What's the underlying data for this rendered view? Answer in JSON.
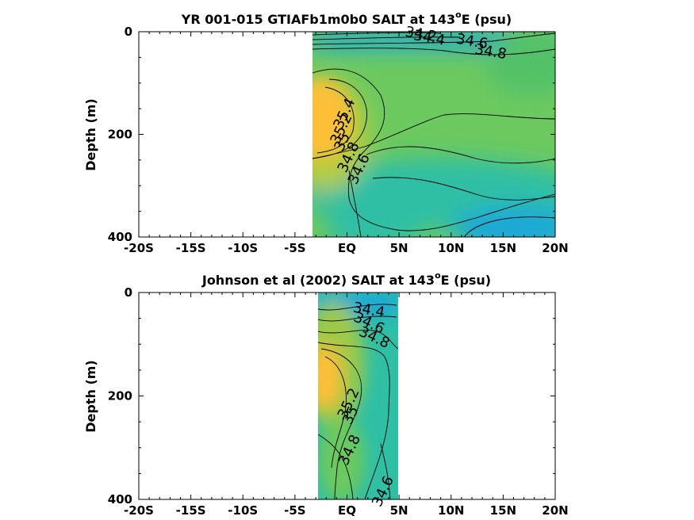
{
  "colors": {
    "low": "#1aa9d6",
    "mid_low": "#2ebfa5",
    "mid": "#6cc95f",
    "mid_high": "#b7cc3c",
    "high": "#fdbf39",
    "contour": "#000000",
    "axis": "#000000"
  },
  "chart_data": [
    {
      "type": "heatmap",
      "title_pre": "YR 001-015 GTIAFb1m0b0 SALT at 143",
      "title_sup": "o",
      "title_post": "E (psu)",
      "xlabel": "",
      "ylabel": "Depth (m)",
      "xlim": [
        -20,
        20
      ],
      "ylim": [
        0,
        400
      ],
      "y_reversed": true,
      "x_ticks": [
        -20,
        -15,
        -10,
        -5,
        0,
        5,
        10,
        15,
        20
      ],
      "x_tick_labels": [
        "-20S",
        "-15S",
        "-10S",
        "-5S",
        "EQ",
        "5N",
        "10N",
        "15N",
        "20N"
      ],
      "y_ticks": [
        0,
        200,
        400
      ],
      "y_tick_labels": [
        "0",
        "200",
        "400"
      ],
      "data_x_range": [
        -3.5,
        20
      ],
      "data_y_range": [
        0,
        400
      ],
      "contour_labels": [
        {
          "text": "34.2",
          "lat": 7.1,
          "depth": 6
        },
        {
          "text": "34.4",
          "lat": 7.9,
          "depth": 13
        },
        {
          "text": "34.6",
          "lat": 12.0,
          "depth": 20
        },
        {
          "text": "34.8",
          "lat": 13.8,
          "depth": 40
        },
        {
          "text": "35.4",
          "lat": -0.2,
          "depth": 160
        },
        {
          "text": "35.2",
          "lat": -0.5,
          "depth": 190
        },
        {
          "text": "35",
          "lat": -0.4,
          "depth": 215
        },
        {
          "text": "34.8",
          "lat": 0.2,
          "depth": 245
        },
        {
          "text": "34.6",
          "lat": 1.2,
          "depth": 268
        }
      ]
    },
    {
      "type": "heatmap",
      "title_pre": "Johnson et al (2002) SALT at 143",
      "title_sup": "o",
      "title_post": "E (psu)",
      "xlabel": "",
      "ylabel": "Depth (m)",
      "xlim": [
        -20,
        20
      ],
      "ylim": [
        0,
        400
      ],
      "y_reversed": true,
      "x_ticks": [
        -20,
        -15,
        -10,
        -5,
        0,
        5,
        10,
        15,
        20
      ],
      "x_tick_labels": [
        "-20S",
        "-15S",
        "-10S",
        "-5S",
        "EQ",
        "5N",
        "10N",
        "15N",
        "20N"
      ],
      "y_ticks": [
        0,
        200,
        400
      ],
      "y_tick_labels": [
        "0",
        "200",
        "400"
      ],
      "data_x_range": [
        -2.8,
        5
      ],
      "data_y_range": [
        0,
        400
      ],
      "contour_labels": [
        {
          "text": "34.4",
          "lat": 2.1,
          "depth": 35
        },
        {
          "text": "34.6",
          "lat": 2.1,
          "depth": 60
        },
        {
          "text": "34.8",
          "lat": 2.6,
          "depth": 88
        },
        {
          "text": "35.2",
          "lat": 0.2,
          "depth": 215
        },
        {
          "text": "35",
          "lat": 0.4,
          "depth": 238
        },
        {
          "text": "34.8",
          "lat": 0.3,
          "depth": 305
        },
        {
          "text": "34.6",
          "lat": 3.5,
          "depth": 385
        }
      ]
    }
  ]
}
